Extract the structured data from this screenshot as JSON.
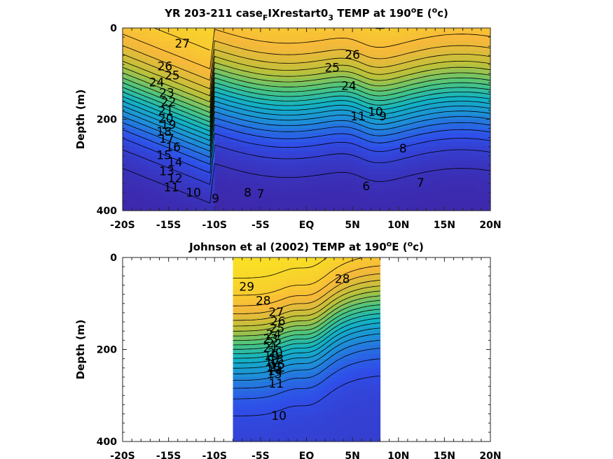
{
  "chart_data": [
    {
      "type": "heatmap",
      "title_parts": [
        "YR 203-211 case",
        "F",
        "IXrestart0",
        "3",
        " TEMP at 190",
        "o",
        "E (",
        "o",
        "c)"
      ],
      "ylabel": "Depth (m)",
      "x_ticklabels": [
        "-20S",
        "-15S",
        "-10S",
        "-5S",
        "EQ",
        "5N",
        "10N",
        "15N",
        "20N"
      ],
      "x_tickvalues": [
        -20,
        -15,
        -10,
        -5,
        0,
        5,
        10,
        15,
        20
      ],
      "y_ticklabels": [
        "0",
        "200",
        "400"
      ],
      "y_tickvalues": [
        0,
        200,
        400
      ],
      "xlim": [
        -20,
        20
      ],
      "ylim": [
        0,
        400
      ],
      "y_reversed": true,
      "data_extent": [
        -20,
        20
      ],
      "colormap": [
        "#3e26a8",
        "#2f4ee8",
        "#1e8ed8",
        "#12b3c3",
        "#4cc57e",
        "#b8c13a",
        "#f7b83a",
        "#f9e621"
      ],
      "contour_labels": [
        {
          "text": "27",
          "x": -13.5,
          "y": 35
        },
        {
          "text": "26",
          "x": -15.4,
          "y": 85
        },
        {
          "text": "25",
          "x": -14.6,
          "y": 105
        },
        {
          "text": "24",
          "x": -16.3,
          "y": 120
        },
        {
          "text": "23",
          "x": -15.2,
          "y": 143
        },
        {
          "text": "22",
          "x": -15.0,
          "y": 163
        },
        {
          "text": "21",
          "x": -15.3,
          "y": 182
        },
        {
          "text": "20",
          "x": -15.3,
          "y": 200
        },
        {
          "text": "19",
          "x": -15.0,
          "y": 213
        },
        {
          "text": "18",
          "x": -15.5,
          "y": 228
        },
        {
          "text": "17",
          "x": -15.2,
          "y": 244
        },
        {
          "text": "16",
          "x": -14.5,
          "y": 262
        },
        {
          "text": "15",
          "x": -15.5,
          "y": 280
        },
        {
          "text": "14",
          "x": -14.3,
          "y": 295
        },
        {
          "text": "13",
          "x": -15.2,
          "y": 315
        },
        {
          "text": "12",
          "x": -14.3,
          "y": 330
        },
        {
          "text": "11",
          "x": -14.7,
          "y": 350
        },
        {
          "text": "10",
          "x": -12.3,
          "y": 362
        },
        {
          "text": "9",
          "x": -9.9,
          "y": 375
        },
        {
          "text": "8",
          "x": -6.4,
          "y": 362
        },
        {
          "text": "7",
          "x": -5.0,
          "y": 365
        },
        {
          "text": "6",
          "x": 6.5,
          "y": 348
        },
        {
          "text": "7",
          "x": 12.4,
          "y": 340
        },
        {
          "text": "8",
          "x": 10.5,
          "y": 265
        },
        {
          "text": "9",
          "x": 8.3,
          "y": 195
        },
        {
          "text": "10",
          "x": 7.5,
          "y": 185
        },
        {
          "text": "11",
          "x": 5.6,
          "y": 195
        },
        {
          "text": "24",
          "x": 4.6,
          "y": 128
        },
        {
          "text": "25",
          "x": 2.8,
          "y": 88
        },
        {
          "text": "26",
          "x": 5.0,
          "y": 60
        }
      ]
    },
    {
      "type": "heatmap",
      "title_parts": [
        "Johnson et al (2002) TEMP at 190",
        "o",
        "E (",
        "o",
        "c)"
      ],
      "ylabel": "Depth (m)",
      "x_ticklabels": [
        "-20S",
        "-15S",
        "-10S",
        "-5S",
        "EQ",
        "5N",
        "10N",
        "15N",
        "20N"
      ],
      "x_tickvalues": [
        -20,
        -15,
        -10,
        -5,
        0,
        5,
        10,
        15,
        20
      ],
      "y_ticklabels": [
        "0",
        "200",
        "400"
      ],
      "y_tickvalues": [
        0,
        200,
        400
      ],
      "xlim": [
        -20,
        20
      ],
      "ylim": [
        0,
        400
      ],
      "y_reversed": true,
      "data_extent": [
        -8,
        8
      ],
      "colormap": [
        "#3e26a8",
        "#2f4ee8",
        "#1e8ed8",
        "#12b3c3",
        "#4cc57e",
        "#b8c13a",
        "#f7b83a",
        "#f9e621"
      ],
      "contour_labels": [
        {
          "text": "29",
          "x": -6.5,
          "y": 65
        },
        {
          "text": "28",
          "x": -4.7,
          "y": 95
        },
        {
          "text": "28",
          "x": 3.9,
          "y": 48
        },
        {
          "text": "27",
          "x": -3.3,
          "y": 120
        },
        {
          "text": "26",
          "x": -3.1,
          "y": 140
        },
        {
          "text": "25",
          "x": -3.2,
          "y": 155
        },
        {
          "text": "24",
          "x": -3.6,
          "y": 168
        },
        {
          "text": "23",
          "x": -3.9,
          "y": 178
        },
        {
          "text": "22",
          "x": -3.5,
          "y": 188
        },
        {
          "text": "21",
          "x": -3.9,
          "y": 198
        },
        {
          "text": "20",
          "x": -3.4,
          "y": 208
        },
        {
          "text": "19",
          "x": -3.8,
          "y": 215
        },
        {
          "text": "18",
          "x": -3.3,
          "y": 222
        },
        {
          "text": "17",
          "x": -3.7,
          "y": 228
        },
        {
          "text": "16",
          "x": -3.2,
          "y": 234
        },
        {
          "text": "15",
          "x": -3.6,
          "y": 241
        },
        {
          "text": "14",
          "x": -3.4,
          "y": 248
        },
        {
          "text": "13",
          "x": -3.5,
          "y": 255
        },
        {
          "text": "12",
          "x": -3.1,
          "y": 240
        },
        {
          "text": "11",
          "x": -3.3,
          "y": 275
        },
        {
          "text": "10",
          "x": -3.0,
          "y": 345
        }
      ]
    }
  ]
}
